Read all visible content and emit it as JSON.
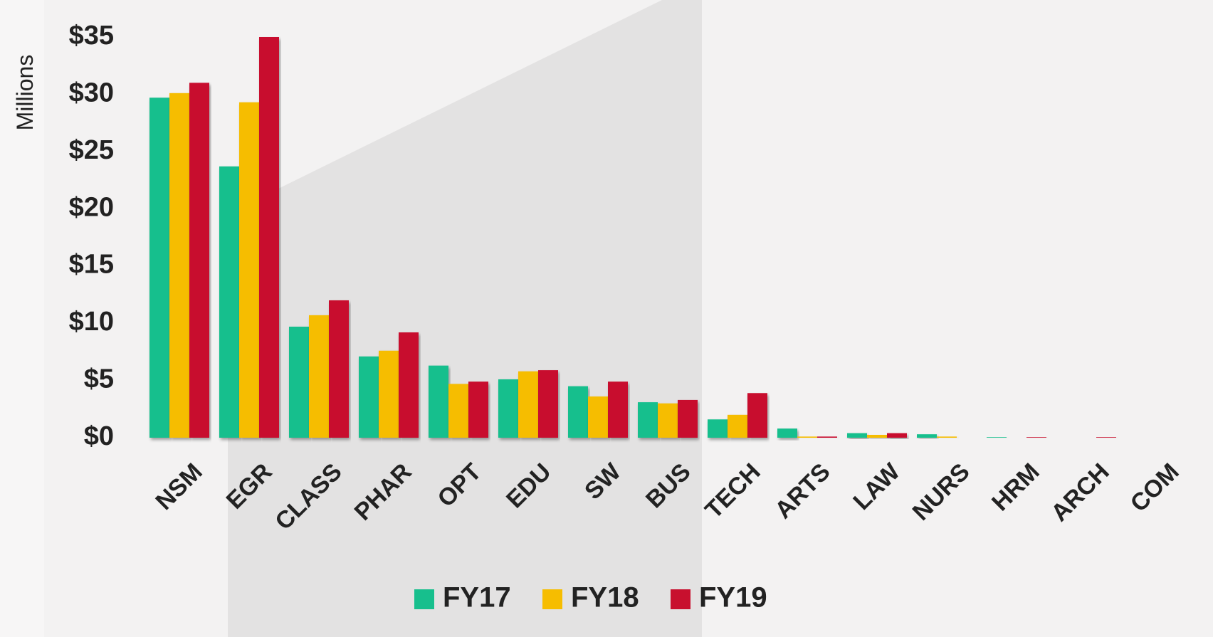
{
  "chart_data": {
    "type": "bar",
    "y_label": "Millions",
    "categories": [
      "NSM",
      "EGR",
      "CLASS",
      "PHAR",
      "OPT",
      "EDU",
      "SW",
      "BUS",
      "TECH",
      "ARTS",
      "LAW",
      "NURS",
      "HRM",
      "ARCH",
      "COM"
    ],
    "series": [
      {
        "name": "FY17",
        "color": "#17bf8d",
        "values": [
          29.7,
          23.7,
          9.7,
          7.1,
          6.3,
          5.1,
          4.5,
          3.1,
          1.6,
          0.8,
          0.4,
          0.3,
          0.05,
          0,
          0
        ]
      },
      {
        "name": "FY18",
        "color": "#f6bd00",
        "values": [
          30.1,
          29.3,
          10.7,
          7.6,
          4.7,
          5.8,
          3.6,
          3.0,
          2.0,
          0.1,
          0.25,
          0.1,
          0,
          0,
          0
        ]
      },
      {
        "name": "FY19",
        "color": "#c8102e",
        "values": [
          31.0,
          35.0,
          12.0,
          9.2,
          4.9,
          5.9,
          4.9,
          3.3,
          3.9,
          0.1,
          0.4,
          0,
          0.05,
          0.05,
          0
        ]
      }
    ],
    "ylim": [
      0,
      35
    ],
    "yticks": [
      {
        "value": 0,
        "label": "$0"
      },
      {
        "value": 5,
        "label": "$5"
      },
      {
        "value": 10,
        "label": "$10"
      },
      {
        "value": 15,
        "label": "$15"
      },
      {
        "value": 20,
        "label": "$20"
      },
      {
        "value": 25,
        "label": "$25"
      },
      {
        "value": 30,
        "label": "$30"
      },
      {
        "value": 35,
        "label": "$35"
      }
    ],
    "grid": true,
    "legend": "bottom"
  }
}
